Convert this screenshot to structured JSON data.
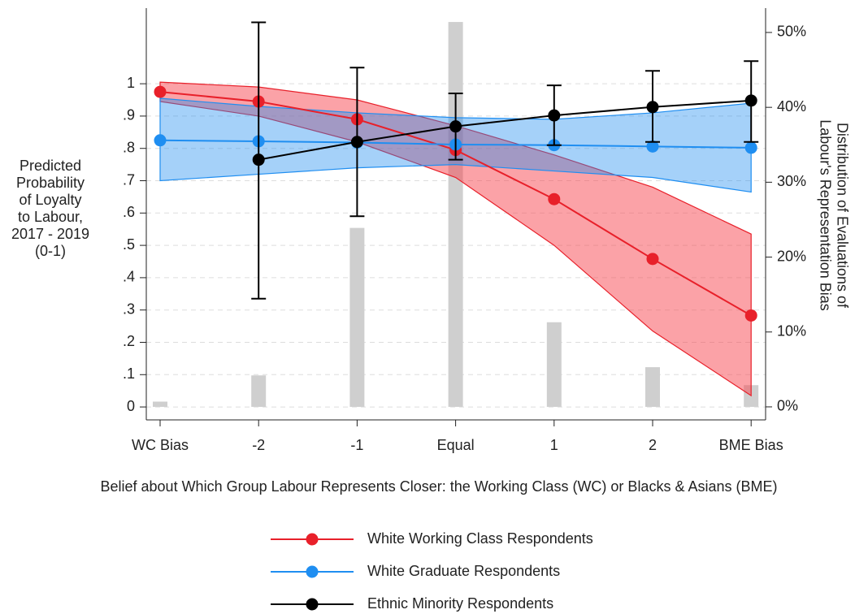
{
  "chart_data": {
    "type": "line",
    "x_label": "Belief about Which Group Labour Represents Closer: the Working Class (WC) or Blacks & Asians (BME)",
    "y_label": [
      "Predicted",
      "Probability",
      "of Loyalty",
      "to Labour,",
      "2017 - 2019",
      "(0-1)"
    ],
    "y2_label": [
      "Distribution of Evaluations of",
      "Labour's Representation Bias"
    ],
    "categories": [
      "WC Bias",
      "-2",
      "-1",
      "Equal",
      "1",
      "2",
      "BME Bias"
    ],
    "ylim": [
      -0.04,
      1.234
    ],
    "yticks": [
      0,
      {
        "value": 0.1,
        "label": ".1"
      },
      {
        "value": 0.2,
        "label": ".2"
      },
      {
        "value": 0.3,
        "label": ".3"
      },
      {
        "value": 0.4,
        "label": ".4"
      },
      {
        "value": 0.5,
        "label": ".5"
      },
      {
        "value": 0.6,
        "label": ".6"
      },
      {
        "value": 0.7,
        "label": ".7"
      },
      {
        "value": 0.8,
        "label": ".8"
      },
      {
        "value": 0.9,
        "label": ".9"
      },
      1
    ],
    "y2lim": [
      -1.74,
      53.25
    ],
    "y2ticks": [
      {
        "value": 0,
        "label": "0%"
      },
      {
        "value": 10,
        "label": "10%"
      },
      {
        "value": 20,
        "label": "20%"
      },
      {
        "value": 30,
        "label": "30%"
      },
      {
        "value": 40,
        "label": "40%"
      },
      {
        "value": 50,
        "label": "50%"
      }
    ],
    "grid": true,
    "bars": {
      "color": "#cfcfcf",
      "axis": "y2",
      "values": [
        0.7,
        4.2,
        23.9,
        51.4,
        11.3,
        5.3,
        2.9
      ]
    },
    "series": [
      {
        "name": "White Working Class Respondents",
        "color": "#e8202a",
        "band_color": "rgba(248,70,80,0.5)",
        "values": [
          0.975,
          0.945,
          0.89,
          0.795,
          0.643,
          0.458,
          0.283
        ],
        "upper": [
          1.005,
          0.99,
          0.95,
          0.87,
          0.78,
          0.68,
          0.535
        ],
        "lower": [
          0.945,
          0.9,
          0.82,
          0.71,
          0.5,
          0.235,
          0.035
        ]
      },
      {
        "name": "White Graduate Respondents",
        "color": "#1f8ef1",
        "band_color": "rgba(30,140,240,0.4)",
        "values": [
          0.825,
          0.822,
          0.818,
          0.812,
          0.81,
          0.806,
          0.802
        ],
        "upper": [
          0.955,
          0.93,
          0.91,
          0.895,
          0.89,
          0.91,
          0.94
        ],
        "lower": [
          0.7,
          0.72,
          0.74,
          0.75,
          0.73,
          0.71,
          0.665
        ]
      },
      {
        "name": "Ethnic Minority Respondents",
        "color": "#000000",
        "errorbars": true,
        "values": [
          null,
          0.765,
          0.82,
          0.868,
          0.902,
          0.928,
          0.948
        ],
        "upper": [
          null,
          1.19,
          1.05,
          0.97,
          0.995,
          1.04,
          1.07
        ],
        "lower": [
          null,
          0.335,
          0.59,
          0.765,
          0.81,
          0.82,
          0.82
        ]
      }
    ]
  }
}
